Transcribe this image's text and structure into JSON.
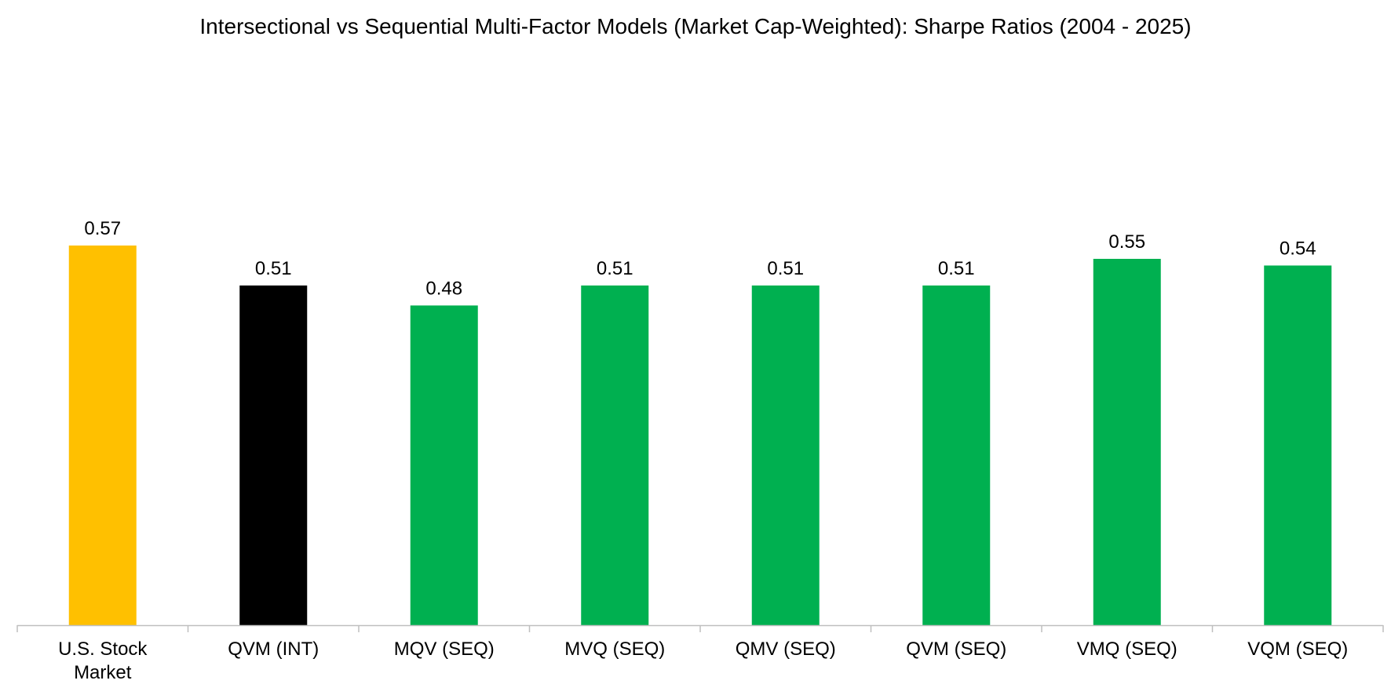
{
  "chart_data": {
    "type": "bar",
    "title": "Intersectional vs Sequential Multi-Factor Models (Market Cap-Weighted): Sharpe Ratios (2004 - 2025)",
    "xlabel": "",
    "ylabel": "",
    "ylim": [
      0,
      0.57
    ],
    "grid": false,
    "legend": "none",
    "categories": [
      "U.S. Stock Market",
      "QVM (INT)",
      "MQV (SEQ)",
      "MVQ (SEQ)",
      "QMV (SEQ)",
      "QVM (SEQ)",
      "VMQ (SEQ)",
      "VQM (SEQ)"
    ],
    "values": [
      0.57,
      0.51,
      0.48,
      0.51,
      0.51,
      0.51,
      0.55,
      0.54
    ],
    "value_labels": [
      "0.57",
      "0.51",
      "0.48",
      "0.51",
      "0.51",
      "0.51",
      "0.55",
      "0.54"
    ],
    "colors": [
      "#FFC000",
      "#000000",
      "#00B050",
      "#00B050",
      "#00B050",
      "#00B050",
      "#00B050",
      "#00B050"
    ]
  },
  "colors": {
    "market": "#FFC000",
    "intersectional": "#000000",
    "sequential": "#00B050",
    "axis": "#BFBFBF"
  }
}
